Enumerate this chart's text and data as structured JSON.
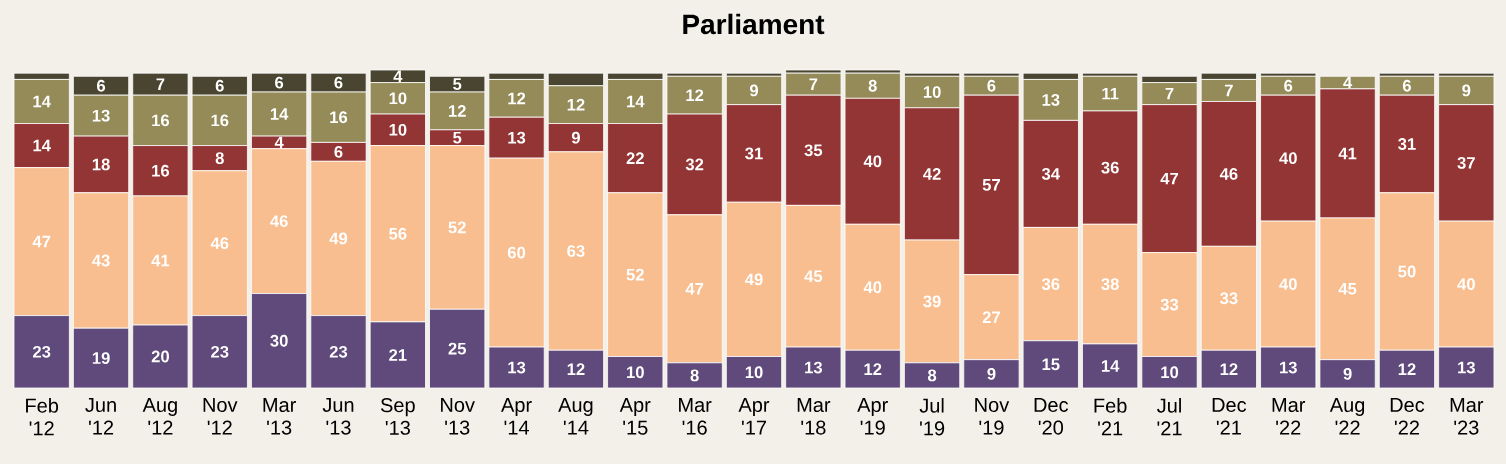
{
  "chart_data": {
    "type": "bar",
    "title": "Parliament",
    "stacked": true,
    "categories": [
      "Feb '12",
      "Jun '12",
      "Aug '12",
      "Nov '12",
      "Mar '13",
      "Jun '13",
      "Sep '13",
      "Nov '13",
      "Apr '14",
      "Aug '14",
      "Apr '15",
      "Mar '16",
      "Apr '17",
      "Mar '18",
      "Apr '19",
      "Jul '19",
      "Nov '19",
      "Dec '20",
      "Feb '21",
      "Jul '21",
      "Dec '21",
      "Mar '22",
      "Aug '22",
      "Dec '22",
      "Mar '23"
    ],
    "series": [
      {
        "color": "#5f4a7b",
        "values": [
          23,
          19,
          20,
          23,
          30,
          23,
          21,
          25,
          13,
          12,
          10,
          8,
          10,
          13,
          12,
          8,
          9,
          15,
          14,
          10,
          12,
          13,
          9,
          12,
          13
        ],
        "value_labels": [
          "23",
          "19",
          "20",
          "23",
          "30",
          "23",
          "21",
          "25",
          "13",
          "12",
          "10",
          "8",
          "10",
          "13",
          "12",
          "8",
          "9",
          "15",
          "14",
          "10",
          "12",
          "13",
          "9",
          "12",
          "13"
        ]
      },
      {
        "color": "#f9be8f",
        "values": [
          47,
          43,
          41,
          46,
          46,
          49,
          56,
          52,
          60,
          63,
          52,
          47,
          49,
          45,
          40,
          39,
          27,
          36,
          38,
          33,
          33,
          40,
          45,
          50,
          40
        ],
        "value_labels": [
          "47",
          "43",
          "41",
          "46",
          "46",
          "49",
          "56",
          "52",
          "60",
          "63",
          "52",
          "47",
          "49",
          "45",
          "40",
          "39",
          "27",
          "36",
          "38",
          "33",
          "33",
          "40",
          "45",
          "50",
          "40"
        ]
      },
      {
        "color": "#943535",
        "values": [
          14,
          18,
          16,
          8,
          4,
          6,
          10,
          5,
          13,
          9,
          22,
          32,
          31,
          35,
          40,
          42,
          57,
          34,
          36,
          47,
          46,
          40,
          41,
          31,
          37
        ],
        "value_labels": [
          "14",
          "18",
          "16",
          "8",
          "4",
          "6",
          "10",
          "5",
          "13",
          "9",
          "22",
          "32",
          "31",
          "35",
          "40",
          "42",
          "57",
          "34",
          "36",
          "47",
          "46",
          "40",
          "41",
          "31",
          "37"
        ]
      },
      {
        "color": "#948b59",
        "values": [
          14,
          13,
          16,
          16,
          14,
          16,
          10,
          12,
          12,
          12,
          14,
          12,
          9,
          7,
          8,
          10,
          6,
          13,
          11,
          7,
          7,
          6,
          4,
          6,
          9
        ],
        "value_labels": [
          "14",
          "13",
          "16",
          "16",
          "14",
          "16",
          "10",
          "12",
          "12",
          "12",
          "14",
          "12",
          "9",
          "7",
          "8",
          "10",
          "6",
          "13",
          "11",
          "7",
          "7",
          "6",
          "4",
          "6",
          "9"
        ]
      },
      {
        "color": "#4a4530",
        "values": [
          2,
          6,
          7,
          6,
          6,
          6,
          4,
          5,
          2,
          4,
          2,
          1,
          1,
          1,
          1,
          1,
          1,
          2,
          1,
          2,
          2,
          1,
          null,
          1,
          1
        ],
        "value_labels": [
          null,
          "6",
          "7",
          "6",
          "6",
          "6",
          "4",
          "5",
          null,
          null,
          null,
          null,
          null,
          null,
          null,
          null,
          null,
          null,
          null,
          null,
          null,
          null,
          null,
          null,
          null
        ]
      }
    ]
  }
}
